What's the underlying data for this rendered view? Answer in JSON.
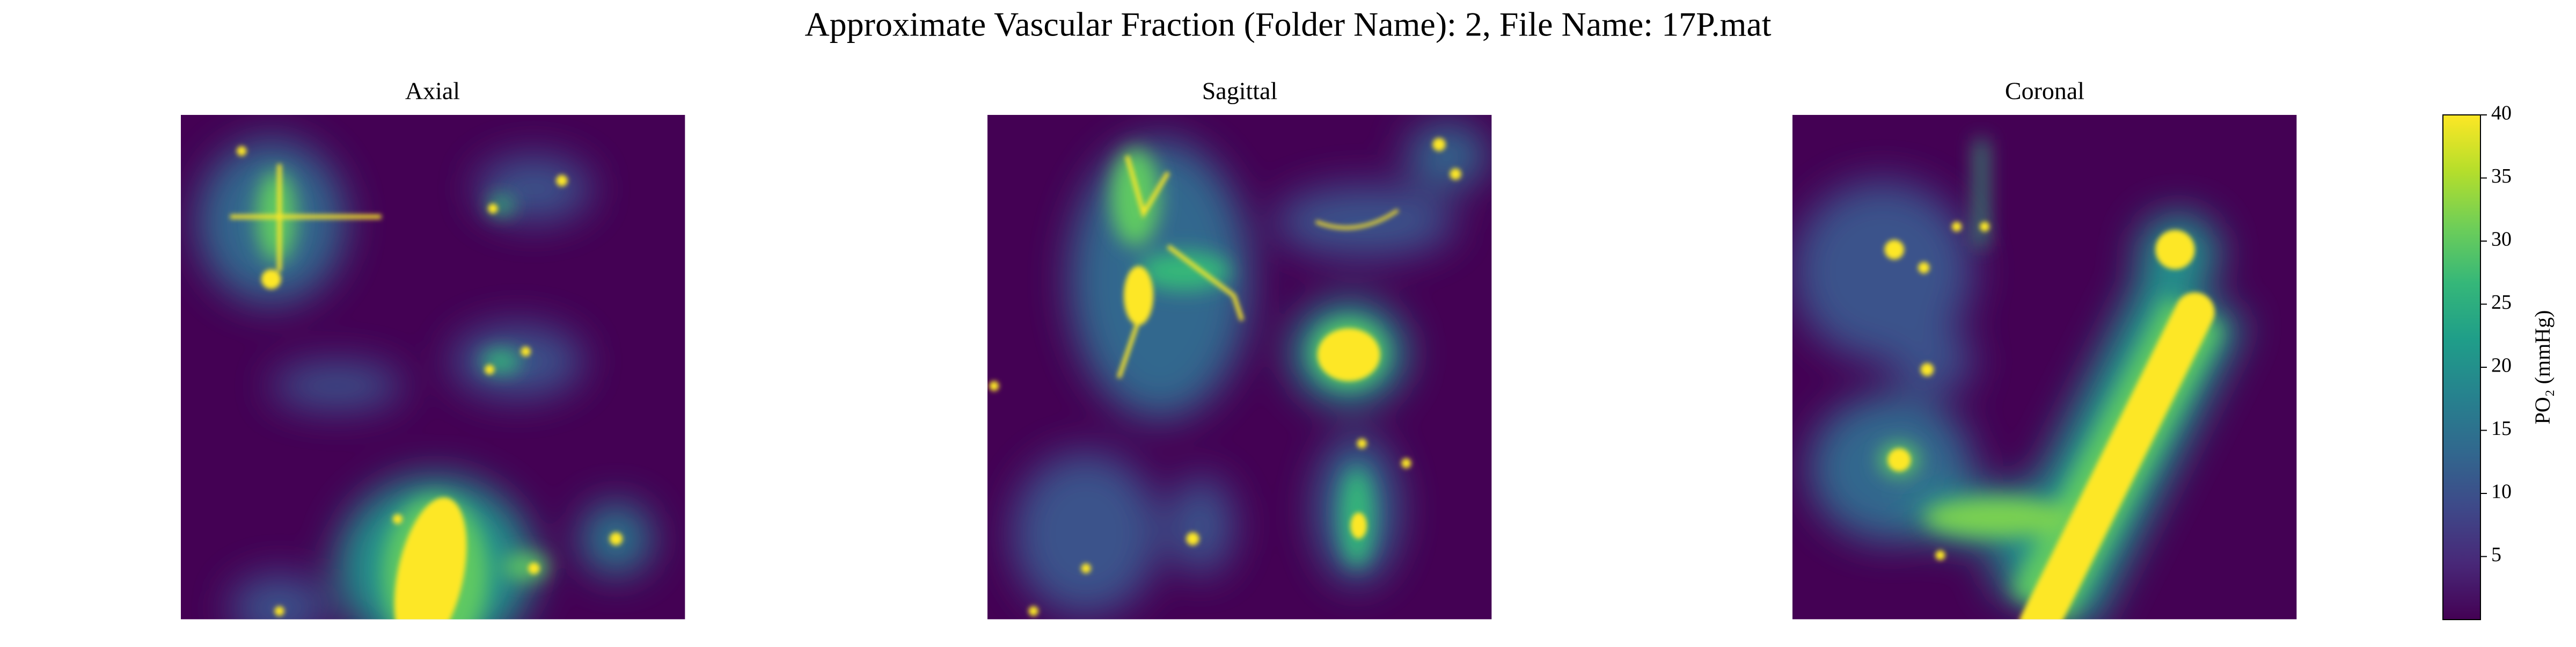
{
  "chart_data": {
    "type": "heatmap",
    "title": "Approximate Vascular Fraction (Folder Name): 2, File Name: 17P.mat",
    "panels": [
      "Axial",
      "Sagittal",
      "Coronal"
    ],
    "colorbar": {
      "label": "PO₂ (mmHg)",
      "colormap": "viridis",
      "lim": [
        0,
        40
      ],
      "ticks": [
        5,
        10,
        15,
        20,
        25,
        30,
        35,
        40
      ]
    }
  }
}
